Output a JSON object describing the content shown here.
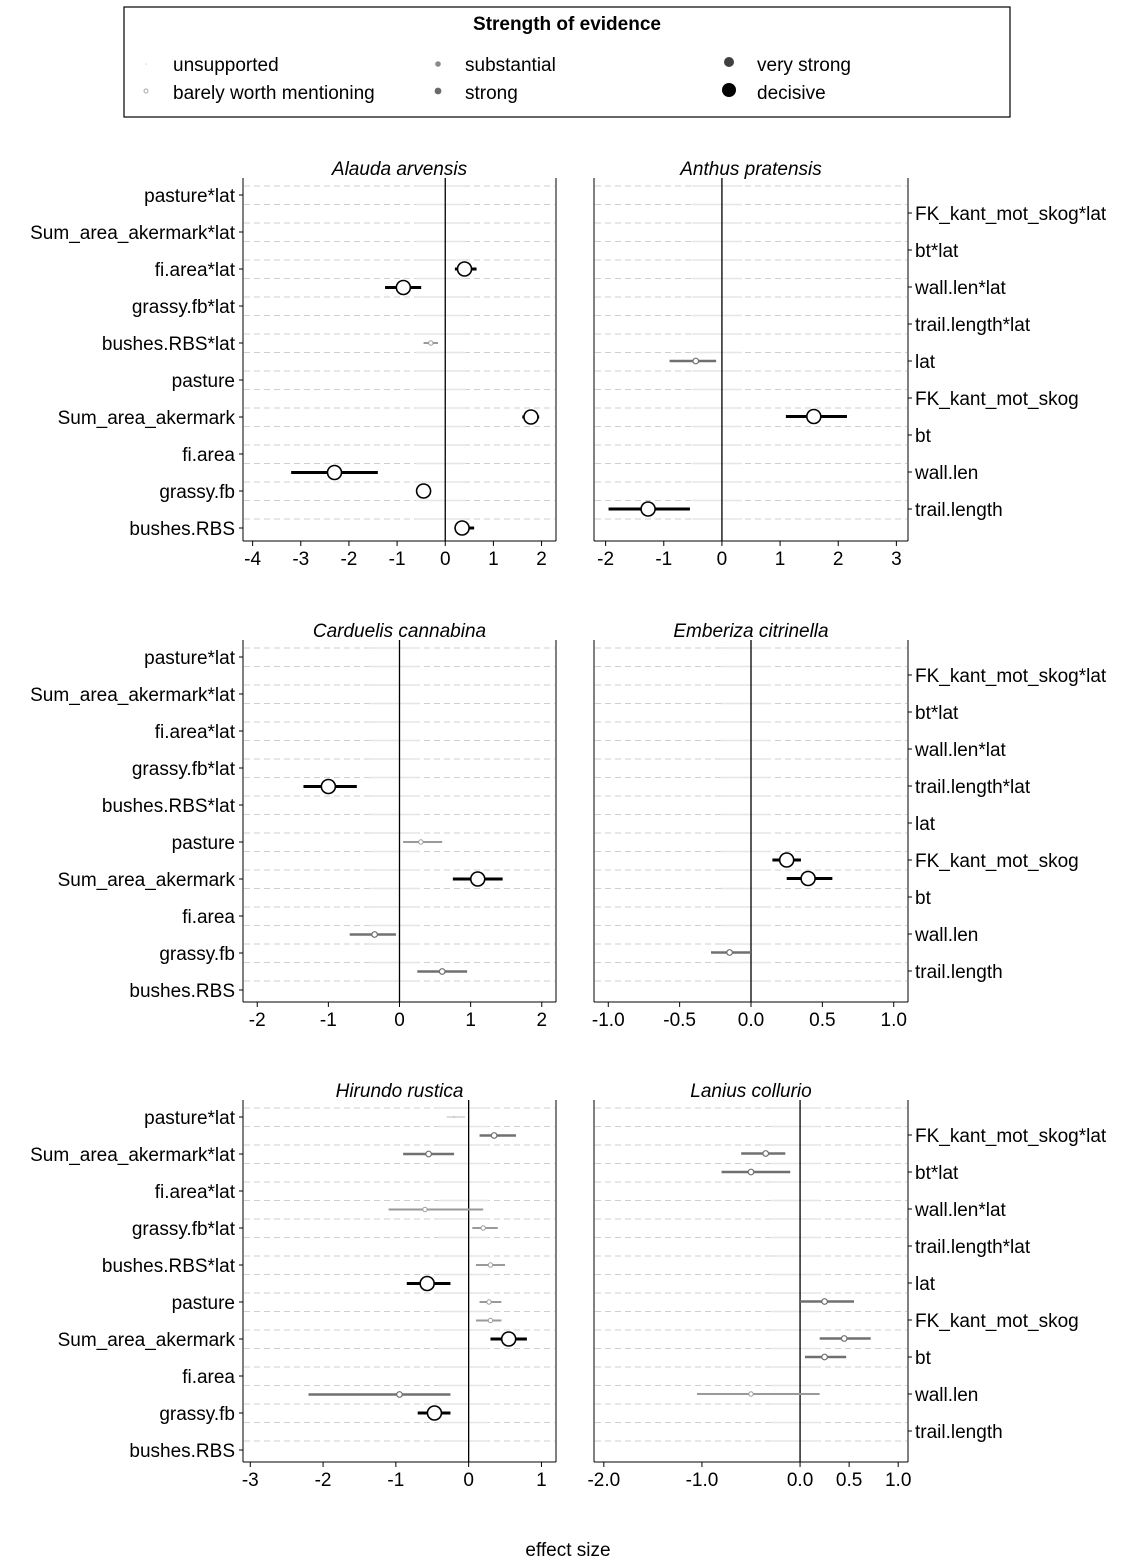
{
  "legend": {
    "title": "Strength of evidence",
    "levels": [
      {
        "key": "unsupported",
        "label": "unsupported"
      },
      {
        "key": "barely",
        "label": "barely worth mentioning"
      },
      {
        "key": "substantial",
        "label": "substantial"
      },
      {
        "key": "strong",
        "label": "strong"
      },
      {
        "key": "very_strong",
        "label": "very strong"
      },
      {
        "key": "decisive",
        "label": "decisive"
      }
    ]
  },
  "xlabel": "effect size",
  "chart_data": [
    {
      "type": "forest",
      "title": "Alauda arvensis",
      "labels_side": "left",
      "y_labels": [
        "pasture*lat",
        "Sum_area_akermark*lat",
        "fi.area*lat",
        "grassy.fb*lat",
        "bushes.RBS*lat",
        "pasture",
        "Sum_area_akermark",
        "fi.area",
        "grassy.fb",
        "bushes.RBS"
      ],
      "xlim": [
        -4.2,
        2.3
      ],
      "xticks": [
        -4,
        -3,
        -2,
        -1,
        0,
        1,
        2
      ],
      "tick_labels": [
        "-4",
        "-3",
        "-2",
        "-1",
        "0",
        "1",
        "2"
      ],
      "series": [
        {
          "name": "barely",
          "points": [
            {
              "row": 4,
              "x": -0.3,
              "lo": -0.45,
              "hi": -0.15
            }
          ]
        },
        {
          "name": "decisive",
          "points": [
            {
              "row": 2,
              "x": 0.4,
              "lo": 0.2,
              "hi": 0.65
            },
            {
              "row": 2.5,
              "x": -0.87,
              "lo": -1.25,
              "hi": -0.5
            },
            {
              "row": 6,
              "x": 1.78,
              "lo": 1.6,
              "hi": 1.95
            },
            {
              "row": 7.5,
              "x": -2.3,
              "lo": -3.2,
              "hi": -1.4
            },
            {
              "row": 8,
              "x": -0.45,
              "lo": -0.6,
              "hi": -0.3
            },
            {
              "row": 9,
              "x": 0.35,
              "lo": 0.2,
              "hi": 0.6
            }
          ]
        }
      ]
    },
    {
      "type": "forest",
      "title": "Anthus pratensis",
      "labels_side": "right",
      "y_labels": [
        "FK_kant_mot_skog*lat",
        "bt*lat",
        "wall.len*lat",
        "trail.length*lat",
        "lat",
        "FK_kant_mot_skog",
        "bt",
        "wall.len",
        "trail.length"
      ],
      "xlim": [
        -2.2,
        3.2
      ],
      "xticks": [
        -2,
        -1,
        0,
        1,
        2,
        3
      ],
      "tick_labels": [
        "-2",
        "-1",
        "0",
        "1",
        "2",
        "3"
      ],
      "series": [
        {
          "name": "substantial",
          "points": [
            {
              "row": 4,
              "x": -0.45,
              "lo": -0.9,
              "hi": -0.1
            }
          ]
        },
        {
          "name": "decisive",
          "points": [
            {
              "row": 5.5,
              "x": 1.58,
              "lo": 1.1,
              "hi": 2.15
            },
            {
              "row": 8,
              "x": -1.27,
              "lo": -1.95,
              "hi": -0.55
            }
          ]
        }
      ]
    },
    {
      "type": "forest",
      "title": "Carduelis cannabina",
      "labels_side": "left",
      "y_labels": [
        "pasture*lat",
        "Sum_area_akermark*lat",
        "fi.area*lat",
        "grassy.fb*lat",
        "bushes.RBS*lat",
        "pasture",
        "Sum_area_akermark",
        "fi.area",
        "grassy.fb",
        "bushes.RBS"
      ],
      "xlim": [
        -2.2,
        2.2
      ],
      "xticks": [
        -2,
        -1,
        0,
        1,
        2
      ],
      "tick_labels": [
        "-2",
        "-1",
        "0",
        "1",
        "2"
      ],
      "series": [
        {
          "name": "barely",
          "points": [
            {
              "row": 5,
              "x": 0.3,
              "lo": 0.05,
              "hi": 0.6
            }
          ]
        },
        {
          "name": "substantial",
          "points": [
            {
              "row": 7.5,
              "x": -0.35,
              "lo": -0.7,
              "hi": -0.05
            },
            {
              "row": 8.5,
              "x": 0.6,
              "lo": 0.25,
              "hi": 0.95
            }
          ]
        },
        {
          "name": "decisive",
          "points": [
            {
              "row": 3.5,
              "x": -1.0,
              "lo": -1.35,
              "hi": -0.6
            },
            {
              "row": 6,
              "x": 1.1,
              "lo": 0.75,
              "hi": 1.45
            }
          ]
        }
      ]
    },
    {
      "type": "forest",
      "title": "Emberiza citrinella",
      "labels_side": "right",
      "y_labels": [
        "FK_kant_mot_skog*lat",
        "bt*lat",
        "wall.len*lat",
        "trail.length*lat",
        "lat",
        "FK_kant_mot_skog",
        "bt",
        "wall.len",
        "trail.length"
      ],
      "xlim": [
        -1.1,
        1.1
      ],
      "xticks": [
        -1,
        -0.5,
        0,
        0.5,
        1
      ],
      "tick_labels": [
        "-1.0",
        "-0.5",
        "0.0",
        "0.5",
        "1.0"
      ],
      "series": [
        {
          "name": "substantial",
          "points": [
            {
              "row": 7.5,
              "x": -0.15,
              "lo": -0.28,
              "hi": 0.0
            }
          ]
        },
        {
          "name": "decisive",
          "points": [
            {
              "row": 5,
              "x": 0.25,
              "lo": 0.15,
              "hi": 0.35
            },
            {
              "row": 5.5,
              "x": 0.4,
              "lo": 0.25,
              "hi": 0.57
            }
          ]
        }
      ]
    },
    {
      "type": "forest",
      "title": "Hirundo rustica",
      "labels_side": "left",
      "y_labels": [
        "pasture*lat",
        "Sum_area_akermark*lat",
        "fi.area*lat",
        "grassy.fb*lat",
        "bushes.RBS*lat",
        "pasture",
        "Sum_area_akermark",
        "fi.area",
        "grassy.fb",
        "bushes.RBS"
      ],
      "xlim": [
        -3.1,
        1.2
      ],
      "xticks": [
        -3,
        -2,
        -1,
        0,
        1
      ],
      "tick_labels": [
        "-3",
        "-2",
        "-1",
        "0",
        "1"
      ],
      "series": [
        {
          "name": "unsupported",
          "points": [
            {
              "row": 0,
              "x": -0.2,
              "lo": -0.3,
              "hi": -0.05
            }
          ]
        },
        {
          "name": "barely",
          "points": [
            {
              "row": 2.5,
              "x": -0.6,
              "lo": -1.1,
              "hi": 0.2
            },
            {
              "row": 3,
              "x": 0.2,
              "lo": 0.05,
              "hi": 0.4
            },
            {
              "row": 4,
              "x": 0.3,
              "lo": 0.1,
              "hi": 0.5
            },
            {
              "row": 5,
              "x": 0.28,
              "lo": 0.15,
              "hi": 0.45
            },
            {
              "row": 5.5,
              "x": 0.3,
              "lo": 0.1,
              "hi": 0.45
            }
          ]
        },
        {
          "name": "substantial",
          "points": [
            {
              "row": 0.5,
              "x": 0.35,
              "lo": 0.15,
              "hi": 0.65
            },
            {
              "row": 1,
              "x": -0.55,
              "lo": -0.9,
              "hi": -0.2
            },
            {
              "row": 7.5,
              "x": -0.95,
              "lo": -2.2,
              "hi": -0.25
            }
          ]
        },
        {
          "name": "decisive",
          "points": [
            {
              "row": 4.5,
              "x": -0.57,
              "lo": -0.85,
              "hi": -0.25
            },
            {
              "row": 6,
              "x": 0.55,
              "lo": 0.3,
              "hi": 0.8
            },
            {
              "row": 8,
              "x": -0.47,
              "lo": -0.7,
              "hi": -0.25
            }
          ]
        }
      ]
    },
    {
      "type": "forest",
      "title": "Lanius collurio",
      "labels_side": "right",
      "y_labels": [
        "FK_kant_mot_skog*lat",
        "bt*lat",
        "wall.len*lat",
        "trail.length*lat",
        "lat",
        "FK_kant_mot_skog",
        "bt",
        "wall.len",
        "trail.length"
      ],
      "xlim": [
        -2.1,
        1.1
      ],
      "xticks": [
        -2,
        -1,
        0,
        0.5,
        1
      ],
      "tick_labels": [
        "-2.0",
        "-1.0",
        "0.0",
        "0.5",
        "1.0"
      ],
      "series": [
        {
          "name": "barely",
          "points": [
            {
              "row": 7,
              "x": -0.5,
              "lo": -1.05,
              "hi": 0.2
            }
          ]
        },
        {
          "name": "substantial",
          "points": [
            {
              "row": 0.5,
              "x": -0.35,
              "lo": -0.6,
              "hi": -0.15
            },
            {
              "row": 1,
              "x": -0.5,
              "lo": -0.8,
              "hi": -0.1
            },
            {
              "row": 4.5,
              "x": 0.25,
              "lo": 0.0,
              "hi": 0.55
            },
            {
              "row": 5.5,
              "x": 0.45,
              "lo": 0.2,
              "hi": 0.72
            },
            {
              "row": 6,
              "x": 0.25,
              "lo": 0.05,
              "hi": 0.47
            }
          ]
        }
      ]
    }
  ]
}
